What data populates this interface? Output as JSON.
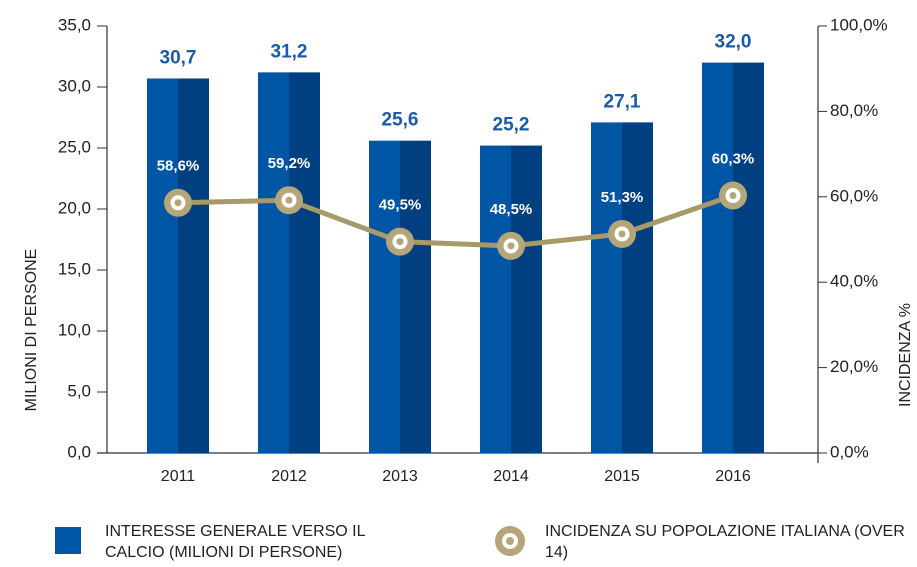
{
  "chart_data": {
    "type": "bar",
    "categories": [
      "2011",
      "2012",
      "2013",
      "2014",
      "2015",
      "2016"
    ],
    "ylabel": "MILIONI DI PERSONE",
    "y2label": "INCIDENZA %",
    "ylim": [
      0,
      35
    ],
    "yticks": [
      {
        "value": 0,
        "label": "0,0"
      },
      {
        "value": 5,
        "label": "5,0"
      },
      {
        "value": 10,
        "label": "10,0"
      },
      {
        "value": 15,
        "label": "15,0"
      },
      {
        "value": 20,
        "label": "20,0"
      },
      {
        "value": 25,
        "label": "25,0"
      },
      {
        "value": 30,
        "label": "30,0"
      },
      {
        "value": 35,
        "label": "35,0"
      }
    ],
    "y2lim": [
      0,
      100
    ],
    "y2ticks": [
      {
        "value": 0,
        "label": "0,0%"
      },
      {
        "value": 20,
        "label": "20,0%"
      },
      {
        "value": 40,
        "label": "40,0%"
      },
      {
        "value": 60,
        "label": "60,0%"
      },
      {
        "value": 80,
        "label": "80,0%"
      },
      {
        "value": 100,
        "label": "100,0%"
      }
    ],
    "series": [
      {
        "name": "INTERESSE GENERALE VERSO IL CALCIO (MILIONI DI PERSONE)",
        "type": "bar",
        "color": "#0055a5",
        "values": [
          30.7,
          31.2,
          25.6,
          25.2,
          27.1,
          32.0
        ],
        "value_labels": [
          "30,7",
          "31,2",
          "25,6",
          "25,2",
          "27,1",
          "32,0"
        ]
      },
      {
        "name": "INCIDENZA SU POPOLAZIONE ITALIANA (OVER 14)",
        "type": "line",
        "axis": "y2",
        "color": "#a89968",
        "values": [
          58.6,
          59.2,
          49.5,
          48.5,
          51.3,
          60.3
        ],
        "value_labels": [
          "58,6%",
          "59,2%",
          "49,5%",
          "48,5%",
          "51,3%",
          "60,3%"
        ]
      }
    ]
  }
}
